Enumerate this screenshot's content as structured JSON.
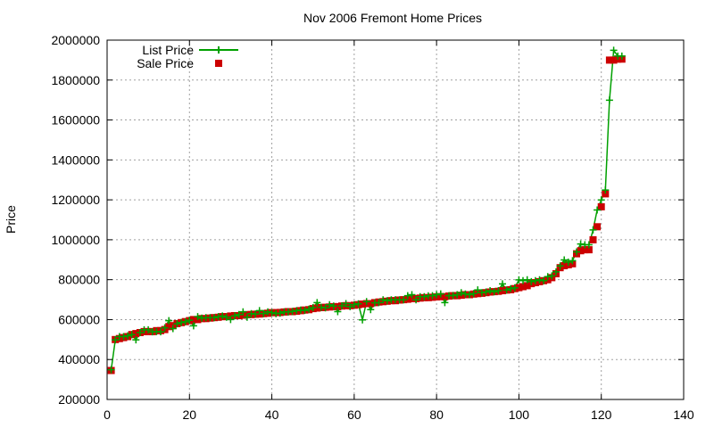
{
  "chart_data": {
    "type": "scatter",
    "title": "Nov 2006 Fremont Home Prices",
    "xlabel": "",
    "ylabel": "Price",
    "xlim": [
      0,
      140
    ],
    "ylim": [
      200000,
      2000000
    ],
    "xticks": [
      0,
      20,
      40,
      60,
      80,
      100,
      120,
      140
    ],
    "yticks": [
      200000,
      400000,
      600000,
      800000,
      1000000,
      1200000,
      1400000,
      1600000,
      1800000,
      2000000
    ],
    "grid": true,
    "legend_position": "top-left",
    "series": [
      {
        "name": "List Price",
        "style": "line+cross",
        "color": "#00a000",
        "x": [
          1,
          2,
          3,
          4,
          5,
          6,
          7,
          8,
          9,
          10,
          11,
          12,
          13,
          14,
          15,
          16,
          17,
          18,
          19,
          20,
          21,
          22,
          23,
          24,
          25,
          26,
          27,
          28,
          29,
          30,
          31,
          32,
          33,
          34,
          35,
          36,
          37,
          38,
          39,
          40,
          41,
          42,
          43,
          44,
          45,
          46,
          47,
          48,
          49,
          50,
          51,
          52,
          53,
          54,
          55,
          56,
          57,
          58,
          59,
          60,
          61,
          62,
          63,
          64,
          65,
          66,
          67,
          68,
          69,
          70,
          71,
          72,
          73,
          74,
          75,
          76,
          77,
          78,
          79,
          80,
          81,
          82,
          83,
          84,
          85,
          86,
          87,
          88,
          89,
          90,
          91,
          92,
          93,
          94,
          95,
          96,
          97,
          98,
          99,
          100,
          101,
          102,
          103,
          104,
          105,
          106,
          107,
          108,
          109,
          110,
          111,
          112,
          113,
          114,
          115,
          116,
          117,
          118,
          119,
          120,
          121,
          122,
          123,
          124,
          125
        ],
        "y": [
          349000,
          499000,
          515000,
          515000,
          519000,
          525000,
          499000,
          535000,
          549000,
          549000,
          539000,
          540000,
          539000,
          559000,
          595000,
          555000,
          579000,
          585000,
          589000,
          597000,
          569000,
          615000,
          608000,
          610000,
          610000,
          610000,
          615000,
          618000,
          612000,
          600000,
          619000,
          625000,
          639000,
          612000,
          630000,
          628000,
          645000,
          630000,
          639000,
          635000,
          630000,
          632000,
          639000,
          638000,
          641000,
          645000,
          648000,
          646000,
          652000,
          660000,
          685000,
          662000,
          659000,
          675000,
          668000,
          640000,
          669000,
          680000,
          665000,
          675000,
          679000,
          599000,
          690000,
          650000,
          684000,
          685000,
          699000,
          695000,
          699000,
          700000,
          699000,
          699000,
          720000,
          725000,
          699000,
          715000,
          715000,
          719000,
          720000,
          725000,
          729000,
          685000,
          720000,
          721000,
          725000,
          735000,
          728000,
          725000,
          730000,
          749000,
          735000,
          738000,
          745000,
          739000,
          745000,
          779000,
          748000,
          755000,
          759000,
          799000,
          795000,
          800000,
          790000,
          795000,
          800000,
          795000,
          815000,
          819000,
          839000,
          869000,
          899000,
          888000,
          895000,
          939000,
          979000,
          975000,
          975000,
          1049000,
          1149000,
          1199000,
          1249000,
          1699000,
          1949000,
          1920000,
          1920000
        ]
      },
      {
        "name": "Sale Price",
        "style": "square",
        "color": "#cc0000",
        "x": [
          1,
          2,
          3,
          4,
          5,
          6,
          7,
          8,
          9,
          10,
          11,
          12,
          13,
          14,
          15,
          16,
          17,
          18,
          19,
          20,
          21,
          22,
          23,
          24,
          25,
          26,
          27,
          28,
          29,
          30,
          31,
          32,
          33,
          34,
          35,
          36,
          37,
          38,
          39,
          40,
          41,
          42,
          43,
          44,
          45,
          46,
          47,
          48,
          49,
          50,
          51,
          52,
          53,
          54,
          55,
          56,
          57,
          58,
          59,
          60,
          61,
          62,
          63,
          64,
          65,
          66,
          67,
          68,
          69,
          70,
          71,
          72,
          73,
          74,
          75,
          76,
          77,
          78,
          79,
          80,
          81,
          82,
          83,
          84,
          85,
          86,
          87,
          88,
          89,
          90,
          91,
          92,
          93,
          94,
          95,
          96,
          97,
          98,
          99,
          100,
          101,
          102,
          103,
          104,
          105,
          106,
          107,
          108,
          109,
          110,
          111,
          112,
          113,
          114,
          115,
          116,
          117,
          118,
          119,
          120,
          121,
          122,
          123,
          124,
          125
        ],
        "y": [
          345000,
          500000,
          505000,
          510000,
          515000,
          525000,
          530000,
          535000,
          540000,
          540000,
          540000,
          545000,
          545000,
          550000,
          565000,
          570000,
          580000,
          585000,
          590000,
          595000,
          600000,
          600000,
          605000,
          605000,
          608000,
          610000,
          612000,
          615000,
          615000,
          618000,
          620000,
          620000,
          622000,
          625000,
          625000,
          627000,
          628000,
          630000,
          632000,
          635000,
          635000,
          636000,
          638000,
          640000,
          640000,
          642000,
          645000,
          648000,
          650000,
          655000,
          658000,
          660000,
          662000,
          663000,
          665000,
          665000,
          668000,
          670000,
          670000,
          672000,
          675000,
          678000,
          680000,
          680000,
          685000,
          688000,
          690000,
          692000,
          695000,
          695000,
          698000,
          700000,
          702000,
          705000,
          705000,
          708000,
          710000,
          710000,
          712000,
          714000,
          715000,
          715000,
          718000,
          720000,
          720000,
          722000,
          725000,
          725000,
          728000,
          730000,
          732000,
          735000,
          738000,
          740000,
          742000,
          745000,
          748000,
          750000,
          755000,
          760000,
          765000,
          770000,
          780000,
          785000,
          790000,
          795000,
          800000,
          810000,
          830000,
          860000,
          870000,
          875000,
          880000,
          930000,
          945000,
          950000,
          950000,
          1000000,
          1065000,
          1165000,
          1230000,
          1900000,
          1900000,
          1905000,
          1905000
        ]
      }
    ]
  }
}
